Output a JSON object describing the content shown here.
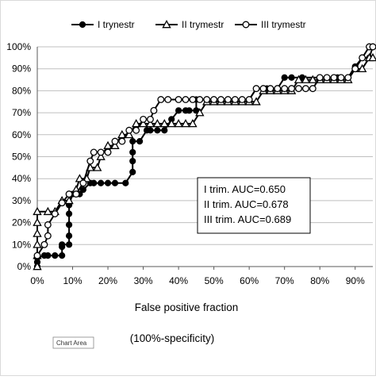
{
  "chart_data": {
    "type": "line",
    "title": "",
    "xlabel": "False positive fraction",
    "xlabel_sub": "(100%-specificity)",
    "ylabel": "",
    "xlim": [
      0,
      95
    ],
    "ylim": [
      0,
      100
    ],
    "x_ticks": [
      "0%",
      "10%",
      "20%",
      "30%",
      "40%",
      "50%",
      "60%",
      "70%",
      "80%",
      "90%"
    ],
    "y_ticks": [
      "0%",
      "10%",
      "20%",
      "30%",
      "40%",
      "50%",
      "60%",
      "70%",
      "80%",
      "90%",
      "100%"
    ],
    "grid": "horizontal",
    "legend": "top",
    "annotation": {
      "lines": [
        "I trim.    AUC=0.650",
        "II trim.   AUC=0.678",
        "III trim.  AUC=0.689"
      ]
    },
    "tooltip": "Chart Area",
    "series": [
      {
        "name": "I trynestr",
        "marker": "filled-circle",
        "color": "#000000",
        "x": [
          0,
          0,
          0,
          2,
          3,
          5,
          7,
          7,
          7,
          9,
          9,
          9,
          9,
          9,
          10,
          12,
          13,
          15,
          16,
          18,
          20,
          22,
          25,
          27,
          27,
          27,
          27,
          29,
          31,
          32,
          34,
          36,
          38,
          40,
          42,
          43,
          45,
          45,
          50,
          60,
          62,
          65,
          68,
          70,
          72,
          75,
          80,
          85,
          88,
          90,
          92,
          94,
          95
        ],
        "y": [
          0,
          2,
          4,
          5,
          5,
          5,
          5,
          9,
          10,
          10,
          14,
          19,
          24,
          28,
          33,
          33,
          35,
          38,
          38,
          38,
          38,
          38,
          38,
          43,
          48,
          52,
          57,
          57,
          62,
          62,
          62,
          62,
          67,
          71,
          71,
          71,
          71,
          76,
          76,
          76,
          81,
          81,
          81,
          86,
          86,
          86,
          86,
          86,
          86,
          91,
          95,
          95,
          100
        ]
      },
      {
        "name": "II trymestr",
        "marker": "open-triangle",
        "color": "#000000",
        "x": [
          0,
          0,
          0,
          0,
          0,
          0,
          3,
          5,
          7,
          9,
          11,
          12,
          14,
          15,
          17,
          18,
          20,
          22,
          24,
          26,
          28,
          30,
          32,
          34,
          36,
          38,
          40,
          42,
          44,
          46,
          48,
          50,
          52,
          54,
          56,
          58,
          60,
          62,
          64,
          66,
          68,
          70,
          72,
          74,
          76,
          78,
          80,
          82,
          84,
          86,
          88,
          90,
          92,
          94,
          95
        ],
        "y": [
          0,
          5,
          10,
          15,
          20,
          25,
          25,
          25,
          30,
          30,
          35,
          40,
          40,
          45,
          45,
          50,
          55,
          55,
          60,
          60,
          65,
          65,
          65,
          65,
          65,
          65,
          65,
          65,
          65,
          70,
          75,
          75,
          75,
          75,
          75,
          75,
          75,
          75,
          80,
          80,
          80,
          80,
          80,
          85,
          85,
          85,
          85,
          85,
          85,
          85,
          85,
          90,
          90,
          95,
          95
        ]
      },
      {
        "name": "III trymestr",
        "marker": "open-circle",
        "color": "#000000",
        "x": [
          0,
          2,
          3,
          3,
          5,
          7,
          9,
          11,
          13,
          15,
          16,
          18,
          20,
          22,
          24,
          26,
          28,
          30,
          32,
          33,
          35,
          37,
          40,
          42,
          44,
          46,
          48,
          50,
          52,
          54,
          56,
          58,
          60,
          62,
          64,
          66,
          68,
          70,
          72,
          74,
          76,
          78,
          80,
          82,
          84,
          86,
          88,
          90,
          92,
          94,
          95
        ],
        "y": [
          5,
          10,
          14,
          19,
          24,
          29,
          33,
          33,
          38,
          48,
          52,
          52,
          52,
          57,
          57,
          62,
          62,
          67,
          67,
          71,
          76,
          76,
          76,
          76,
          76,
          76,
          76,
          76,
          76,
          76,
          76,
          76,
          76,
          81,
          81,
          81,
          81,
          81,
          81,
          81,
          81,
          81,
          86,
          86,
          86,
          86,
          86,
          90,
          95,
          100,
          100
        ]
      }
    ]
  }
}
